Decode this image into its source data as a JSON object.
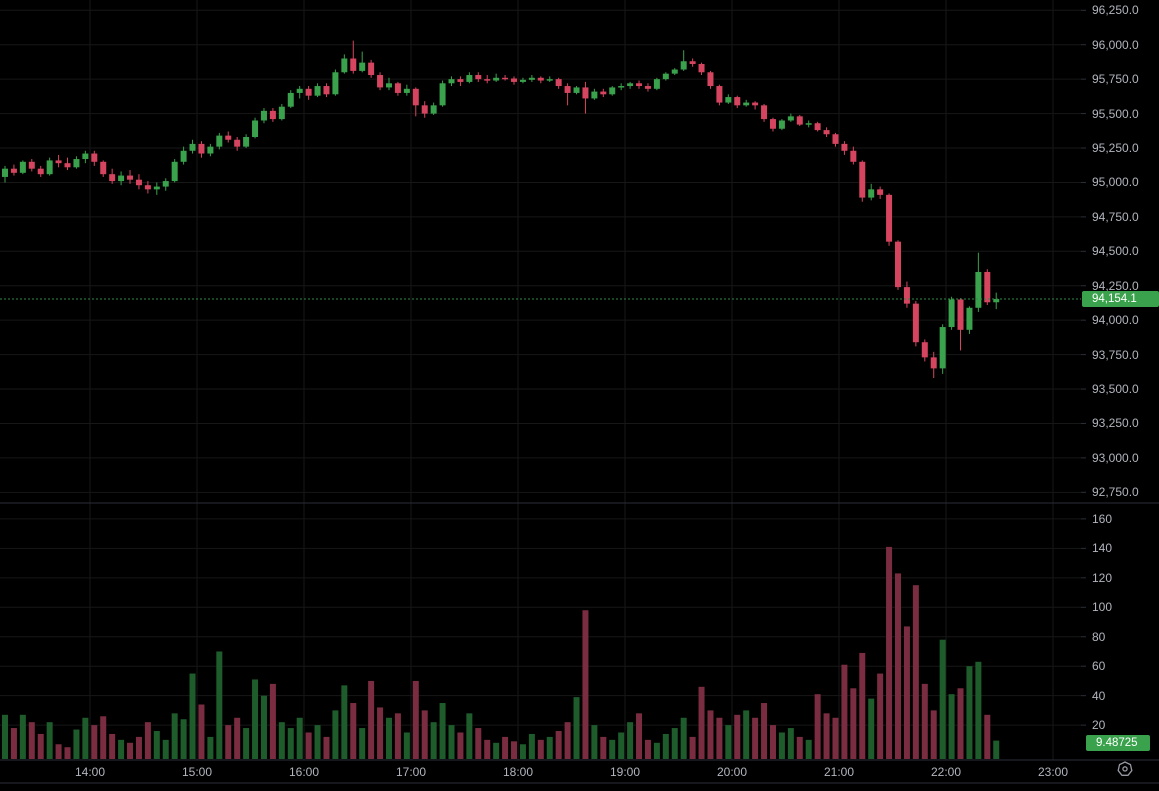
{
  "colors": {
    "background": "#000000",
    "grid": "#171717",
    "candle_up": "#3aa24c",
    "candle_down": "#d64560",
    "volume_up": "#1e5c2c",
    "volume_down": "#7a2d40",
    "axis_text": "#b2b5be",
    "divider": "#2a2e39",
    "current_price_line": "#2f8a46",
    "price_badge_bg": "#3aa24c",
    "volume_badge_bg": "#3aa24c",
    "icon_stroke": "#9598a1"
  },
  "price_axis": {
    "labels": [
      "96,250.0",
      "96,000.0",
      "95,750.0",
      "95,500.0",
      "95,250.0",
      "95,000.0",
      "94,750.0",
      "94,500.0",
      "94,250.0",
      "94,000.0",
      "93,750.0",
      "93,500.0",
      "93,250.0",
      "93,000.0",
      "92,750.0"
    ]
  },
  "volume_axis": {
    "labels": [
      "160",
      "140",
      "120",
      "100",
      "80",
      "60",
      "40",
      "20"
    ]
  },
  "time_axis": {
    "labels": [
      "14:00",
      "15:00",
      "16:00",
      "17:00",
      "18:00",
      "19:00",
      "20:00",
      "21:00",
      "22:00",
      "23:00"
    ]
  },
  "last_price_badge": "94,154.1",
  "last_volume_badge": "9.48725",
  "chart_data": {
    "type": "candlestick_with_volume",
    "title": "",
    "price_axis_range": [
      92750,
      96250
    ],
    "price_tick_step": 250,
    "volume_ticks": [
      20,
      40,
      60,
      80,
      100,
      120,
      140,
      160
    ],
    "last_price": 94154.1,
    "last_volume": 9.48725,
    "columns": [
      "time",
      "open",
      "high",
      "low",
      "close",
      "volume"
    ],
    "candles": [
      [
        "13:10",
        95040,
        95120,
        95000,
        95100,
        27
      ],
      [
        "13:15",
        95100,
        95130,
        95050,
        95070,
        18
      ],
      [
        "13:20",
        95070,
        95160,
        95060,
        95150,
        27
      ],
      [
        "13:25",
        95150,
        95170,
        95080,
        95100,
        22
      ],
      [
        "13:30",
        95100,
        95120,
        95040,
        95060,
        14
      ],
      [
        "13:35",
        95060,
        95180,
        95050,
        95160,
        22
      ],
      [
        "13:40",
        95160,
        95200,
        95110,
        95140,
        7
      ],
      [
        "13:45",
        95140,
        95180,
        95090,
        95110,
        5
      ],
      [
        "13:50",
        95110,
        95190,
        95100,
        95170,
        17
      ],
      [
        "13:55",
        95170,
        95230,
        95140,
        95210,
        25
      ],
      [
        "14:00",
        95210,
        95230,
        95120,
        95150,
        20
      ],
      [
        "14:05",
        95150,
        95160,
        95040,
        95060,
        26
      ],
      [
        "14:10",
        95060,
        95100,
        94990,
        95010,
        14
      ],
      [
        "14:15",
        95010,
        95080,
        94980,
        95050,
        10
      ],
      [
        "14:20",
        95050,
        95090,
        94990,
        95020,
        8
      ],
      [
        "14:25",
        95020,
        95060,
        94950,
        94980,
        12
      ],
      [
        "14:30",
        94980,
        95010,
        94920,
        94950,
        22
      ],
      [
        "14:35",
        94950,
        95000,
        94910,
        94970,
        16
      ],
      [
        "14:40",
        94970,
        95030,
        94940,
        95010,
        10
      ],
      [
        "14:45",
        95010,
        95170,
        95000,
        95150,
        28
      ],
      [
        "14:50",
        95150,
        95260,
        95130,
        95230,
        24
      ],
      [
        "14:55",
        95230,
        95310,
        95210,
        95280,
        55
      ],
      [
        "15:00",
        95280,
        95300,
        95180,
        95210,
        34
      ],
      [
        "15:05",
        95210,
        95280,
        95190,
        95260,
        12
      ],
      [
        "15:10",
        95260,
        95360,
        95240,
        95340,
        70
      ],
      [
        "15:15",
        95340,
        95370,
        95290,
        95310,
        20
      ],
      [
        "15:20",
        95310,
        95330,
        95230,
        95260,
        25
      ],
      [
        "15:25",
        95260,
        95350,
        95250,
        95330,
        18
      ],
      [
        "15:30",
        95330,
        95470,
        95320,
        95450,
        51
      ],
      [
        "15:35",
        95450,
        95540,
        95430,
        95520,
        40
      ],
      [
        "15:40",
        95520,
        95540,
        95440,
        95460,
        48
      ],
      [
        "15:45",
        95460,
        95570,
        95450,
        95550,
        22
      ],
      [
        "15:50",
        95550,
        95670,
        95540,
        95650,
        18
      ],
      [
        "15:55",
        95650,
        95700,
        95610,
        95680,
        25
      ],
      [
        "16:00",
        95680,
        95700,
        95600,
        95630,
        15
      ],
      [
        "16:05",
        95630,
        95720,
        95620,
        95700,
        20
      ],
      [
        "16:10",
        95700,
        95720,
        95620,
        95640,
        12
      ],
      [
        "16:15",
        95640,
        95820,
        95630,
        95800,
        30
      ],
      [
        "16:20",
        95800,
        95930,
        95790,
        95900,
        47
      ],
      [
        "16:25",
        95900,
        96030,
        95790,
        95810,
        35
      ],
      [
        "16:30",
        95810,
        95950,
        95800,
        95870,
        18
      ],
      [
        "16:35",
        95870,
        95890,
        95760,
        95780,
        50
      ],
      [
        "16:40",
        95780,
        95800,
        95670,
        95690,
        32
      ],
      [
        "16:45",
        95690,
        95760,
        95670,
        95720,
        25
      ],
      [
        "16:50",
        95720,
        95730,
        95630,
        95650,
        28
      ],
      [
        "16:55",
        95650,
        95710,
        95630,
        95680,
        15
      ],
      [
        "17:00",
        95680,
        95690,
        95480,
        95560,
        50
      ],
      [
        "17:05",
        95560,
        95590,
        95470,
        95500,
        30
      ],
      [
        "17:10",
        95500,
        95580,
        95490,
        95560,
        22
      ],
      [
        "17:15",
        95560,
        95740,
        95550,
        95720,
        35
      ],
      [
        "17:20",
        95720,
        95770,
        95700,
        95750,
        20
      ],
      [
        "17:25",
        95750,
        95770,
        95700,
        95730,
        15
      ],
      [
        "17:30",
        95730,
        95800,
        95720,
        95780,
        28
      ],
      [
        "17:35",
        95780,
        95800,
        95730,
        95750,
        18
      ],
      [
        "17:40",
        95750,
        95780,
        95720,
        95740,
        10
      ],
      [
        "17:45",
        95740,
        95790,
        95730,
        95760,
        8
      ],
      [
        "17:50",
        95760,
        95780,
        95740,
        95755,
        12
      ],
      [
        "17:55",
        95755,
        95770,
        95710,
        95730,
        9
      ],
      [
        "18:00",
        95730,
        95760,
        95720,
        95745,
        7
      ],
      [
        "18:05",
        95745,
        95780,
        95730,
        95760,
        14
      ],
      [
        "18:10",
        95760,
        95770,
        95720,
        95740,
        10
      ],
      [
        "18:15",
        95740,
        95770,
        95730,
        95750,
        12
      ],
      [
        "18:20",
        95750,
        95760,
        95680,
        95700,
        16
      ],
      [
        "18:25",
        95700,
        95720,
        95560,
        95650,
        22
      ],
      [
        "18:30",
        95650,
        95700,
        95640,
        95690,
        39
      ],
      [
        "18:35",
        95690,
        95730,
        95500,
        95610,
        98
      ],
      [
        "18:40",
        95610,
        95680,
        95600,
        95660,
        20
      ],
      [
        "18:45",
        95660,
        95680,
        95620,
        95640,
        12
      ],
      [
        "18:50",
        95640,
        95700,
        95630,
        95690,
        10
      ],
      [
        "18:55",
        95690,
        95720,
        95670,
        95700,
        15
      ],
      [
        "19:00",
        95700,
        95730,
        95680,
        95720,
        22
      ],
      [
        "19:05",
        95720,
        95740,
        95680,
        95700,
        28
      ],
      [
        "19:10",
        95700,
        95720,
        95660,
        95680,
        10
      ],
      [
        "19:15",
        95680,
        95760,
        95670,
        95750,
        8
      ],
      [
        "19:20",
        95750,
        95800,
        95740,
        95790,
        14
      ],
      [
        "19:25",
        95790,
        95830,
        95780,
        95820,
        18
      ],
      [
        "19:30",
        95820,
        95960,
        95810,
        95880,
        25
      ],
      [
        "19:35",
        95880,
        95900,
        95840,
        95860,
        12
      ],
      [
        "19:40",
        95860,
        95870,
        95780,
        95800,
        46
      ],
      [
        "19:45",
        95800,
        95810,
        95680,
        95700,
        30
      ],
      [
        "19:50",
        95700,
        95710,
        95560,
        95580,
        25
      ],
      [
        "19:55",
        95580,
        95640,
        95570,
        95620,
        20
      ],
      [
        "20:00",
        95620,
        95630,
        95540,
        95560,
        27
      ],
      [
        "20:05",
        95560,
        95600,
        95550,
        95580,
        30
      ],
      [
        "20:10",
        95580,
        95590,
        95530,
        95560,
        25
      ],
      [
        "20:15",
        95560,
        95570,
        95440,
        95460,
        35
      ],
      [
        "20:20",
        95460,
        95470,
        95370,
        95390,
        20
      ],
      [
        "20:25",
        95390,
        95460,
        95380,
        95450,
        15
      ],
      [
        "20:30",
        95450,
        95500,
        95440,
        95480,
        18
      ],
      [
        "20:35",
        95480,
        95490,
        95410,
        95420,
        12
      ],
      [
        "20:40",
        95420,
        95450,
        95400,
        95430,
        10
      ],
      [
        "20:45",
        95430,
        95440,
        95370,
        95380,
        41
      ],
      [
        "20:50",
        95380,
        95400,
        95330,
        95350,
        28
      ],
      [
        "20:55",
        95350,
        95360,
        95260,
        95280,
        25
      ],
      [
        "21:00",
        95280,
        95300,
        95200,
        95230,
        61
      ],
      [
        "21:05",
        95230,
        95260,
        95130,
        95150,
        45
      ],
      [
        "21:10",
        95150,
        95160,
        94860,
        94890,
        69
      ],
      [
        "21:15",
        94890,
        94990,
        94870,
        94950,
        38
      ],
      [
        "21:20",
        94950,
        94970,
        94880,
        94910,
        55
      ],
      [
        "21:25",
        94910,
        94920,
        94540,
        94570,
        141
      ],
      [
        "21:30",
        94570,
        94580,
        94220,
        94240,
        123
      ],
      [
        "21:35",
        94240,
        94280,
        94090,
        94120,
        87
      ],
      [
        "21:40",
        94120,
        94140,
        93810,
        93840,
        115
      ],
      [
        "21:45",
        93840,
        93860,
        93700,
        93730,
        48
      ],
      [
        "21:50",
        93730,
        93770,
        93580,
        93650,
        30
      ],
      [
        "21:55",
        93650,
        93970,
        93610,
        93950,
        78
      ],
      [
        "22:00",
        93950,
        94170,
        93930,
        94150,
        41
      ],
      [
        "22:05",
        94150,
        94160,
        93780,
        93930,
        45
      ],
      [
        "22:10",
        93930,
        94100,
        93900,
        94090,
        60
      ],
      [
        "22:15",
        94090,
        94490,
        94060,
        94350,
        63
      ],
      [
        "22:20",
        94350,
        94370,
        94110,
        94130,
        27
      ],
      [
        "22:25",
        94130,
        94200,
        94080,
        94154.1,
        9.48725
      ]
    ]
  }
}
